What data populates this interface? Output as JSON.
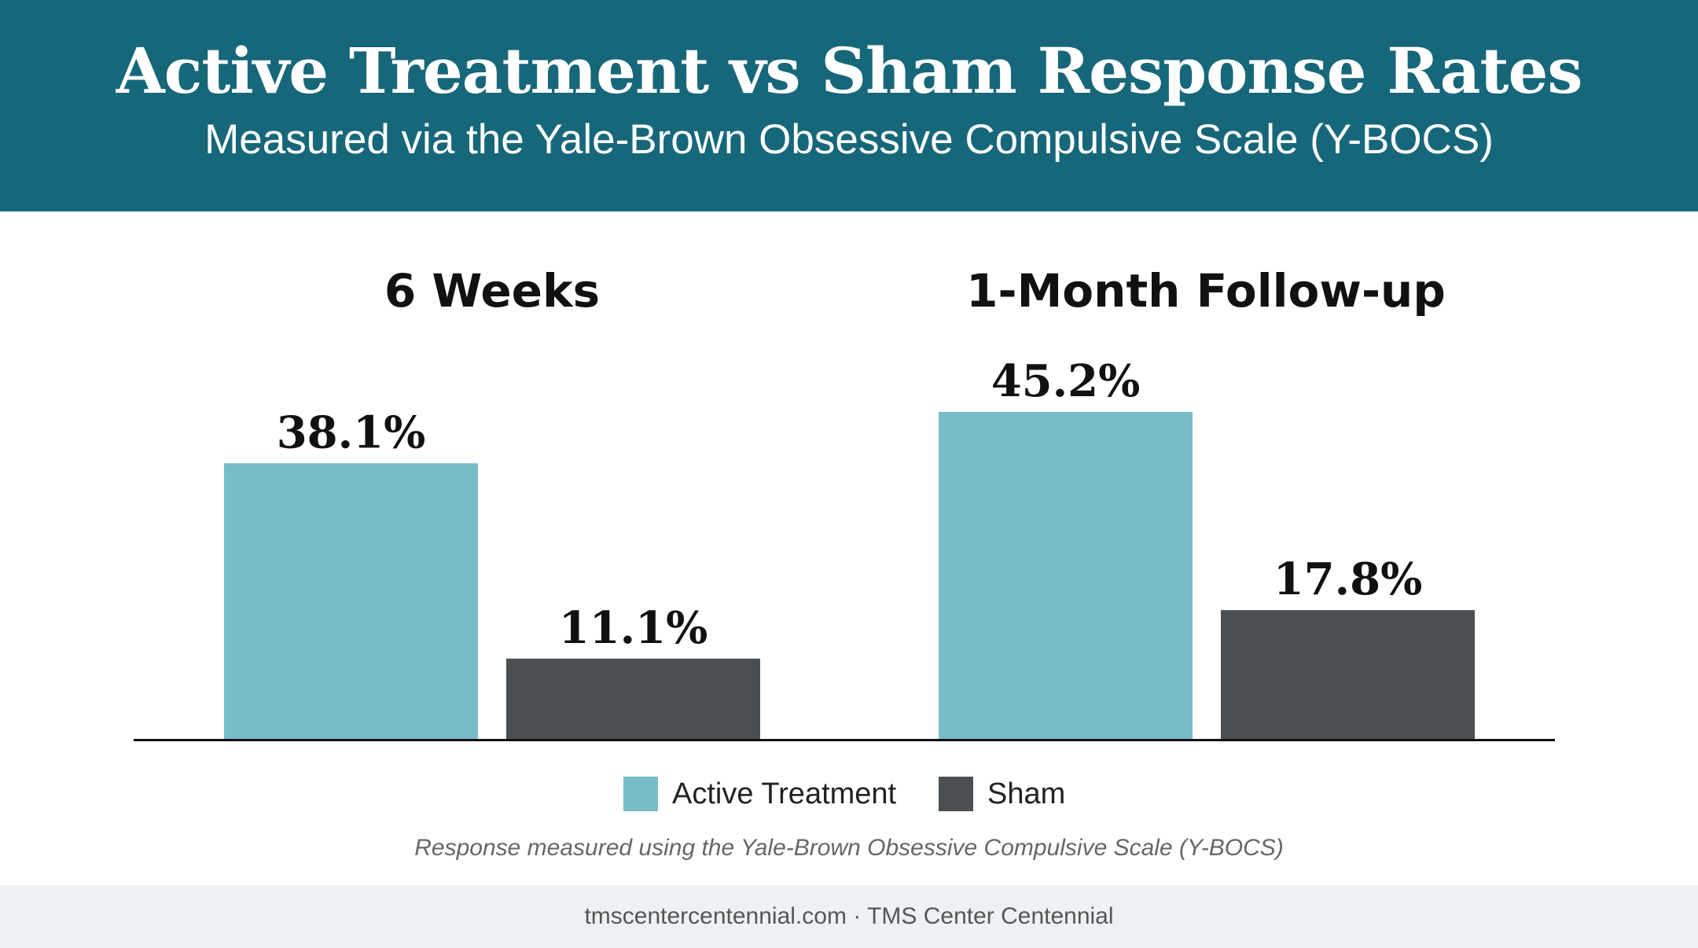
{
  "header": {
    "title": "Active Treatment vs Sham Response Rates",
    "subtitle": "Measured via the Yale-Brown Obsessive Compulsive Scale (Y-BOCS)"
  },
  "chart_data": {
    "type": "bar",
    "categories": [
      "6 Weeks",
      "1-Month Follow-up"
    ],
    "series": [
      {
        "name": "Active Treatment",
        "values": [
          38.1,
          45.2
        ],
        "labels": [
          "38.1%",
          "45.2%"
        ],
        "color": "#78bcc8"
      },
      {
        "name": "Sham",
        "values": [
          11.1,
          17.8
        ],
        "labels": [
          "11.1%",
          "17.8%"
        ],
        "color": "#4b4f52"
      }
    ],
    "ylim": [
      0,
      50
    ],
    "grid": false,
    "legend_position": "bottom-center"
  },
  "footnote": "Response measured using the Yale-Brown Obsessive Compulsive Scale (Y-BOCS)",
  "footer": "tmscentercentennial.com · TMS Center Centennial",
  "colors": {
    "header_bg": "#17677a",
    "active": "#78bcc8",
    "sham": "#4b4f52",
    "footer_bg": "#eef1f3"
  }
}
